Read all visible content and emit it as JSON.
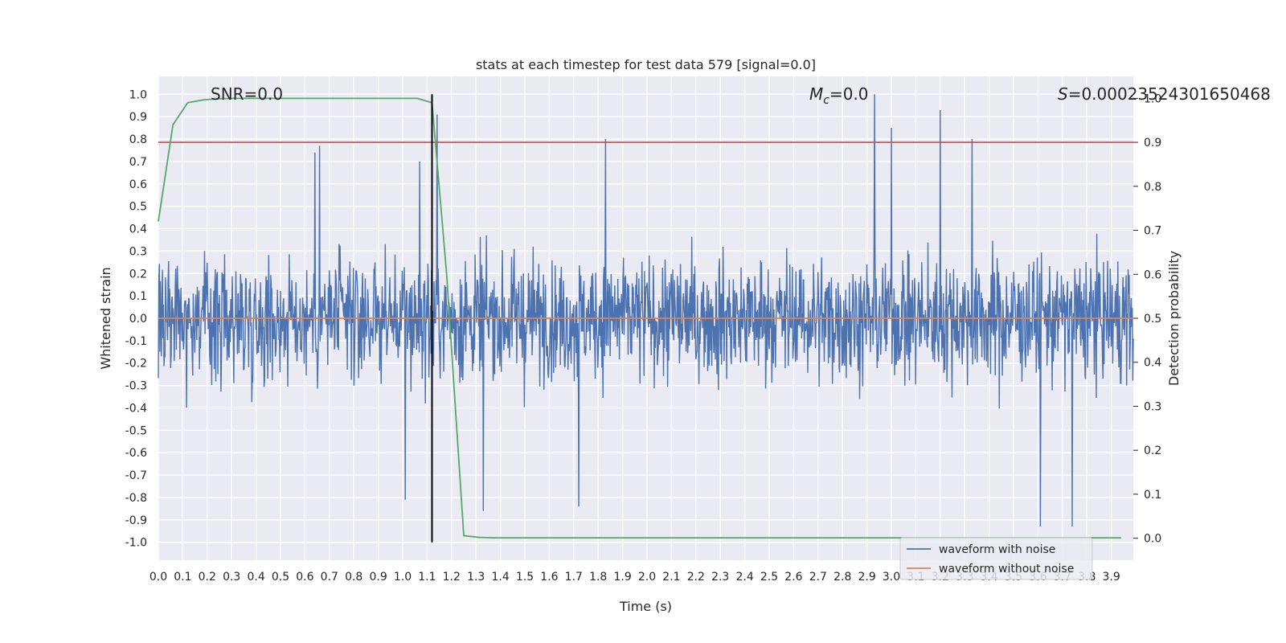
{
  "chart_data": {
    "type": "line",
    "title": "stats at each timestep for test data 579 [signal=0.0]",
    "xlabel": "Time (s)",
    "ylabel": "Whitened strain",
    "y2label": "Detection probability",
    "xlim": [
      0.0,
      3.99
    ],
    "ylim": [
      -1.08,
      1.08
    ],
    "y2lim": [
      -0.05,
      1.05
    ],
    "grid": true,
    "x_ticks": [
      "0.0",
      "0.1",
      "0.2",
      "0.3",
      "0.4",
      "0.5",
      "0.6",
      "0.7",
      "0.8",
      "0.9",
      "1.0",
      "1.1",
      "1.2",
      "1.3",
      "1.4",
      "1.5",
      "1.6",
      "1.7",
      "1.8",
      "1.9",
      "2.0",
      "2.1",
      "2.2",
      "2.3",
      "2.4",
      "2.5",
      "2.6",
      "2.7",
      "2.8",
      "2.9",
      "3.0",
      "3.1",
      "3.2",
      "3.3",
      "3.4",
      "3.5",
      "3.6",
      "3.7",
      "3.8",
      "3.9"
    ],
    "y_ticks": [
      "1.0",
      "0.9",
      "0.8",
      "0.7",
      "0.6",
      "0.5",
      "0.4",
      "0.3",
      "0.2",
      "0.1",
      "0.0",
      "-0.1",
      "-0.2",
      "-0.3",
      "-0.4",
      "-0.5",
      "-0.6",
      "-0.7",
      "-0.8",
      "-0.9",
      "-1.0"
    ],
    "y2_ticks": [
      "1.0",
      "0.9",
      "0.8",
      "0.7",
      "0.6",
      "0.5",
      "0.4",
      "0.3",
      "0.2",
      "0.1",
      "0.0"
    ],
    "annotations": {
      "snr": "SNR=0.0",
      "mc_symbol": "M",
      "mc_sub": "c",
      "mc_value": "=0.0",
      "s_symbol": "S",
      "s_value": "=0.00023524301650468"
    },
    "series": [
      {
        "name": "waveform with noise",
        "color": "#4c72b0",
        "axis": "left",
        "note": "whitened noise, roughly +/-0.4 typical, peaks near 1.0 at t~2.93 s",
        "peaks": [
          {
            "x": 0.64,
            "y": 0.74
          },
          {
            "x": 0.66,
            "y": 0.77
          },
          {
            "x": 1.01,
            "y": -0.81
          },
          {
            "x": 1.07,
            "y": 0.7
          },
          {
            "x": 1.14,
            "y": 0.91
          },
          {
            "x": 1.33,
            "y": -0.86
          },
          {
            "x": 1.72,
            "y": -0.84
          },
          {
            "x": 1.83,
            "y": 0.8
          },
          {
            "x": 2.93,
            "y": 1.0
          },
          {
            "x": 3.0,
            "y": 0.85
          },
          {
            "x": 3.2,
            "y": 0.93
          },
          {
            "x": 3.33,
            "y": 0.8
          },
          {
            "x": 3.61,
            "y": -0.93
          },
          {
            "x": 3.74,
            "y": -0.93
          }
        ]
      },
      {
        "name": "waveform without noise",
        "color": "#dd8452",
        "axis": "left",
        "x": [
          0.0,
          3.99
        ],
        "y": [
          0.0,
          0.0
        ]
      },
      {
        "name": "detection probability",
        "color": "#55a868",
        "axis": "right",
        "x": [
          0.0,
          0.06,
          0.12,
          0.19,
          0.25,
          0.31,
          0.5,
          0.8,
          1.0,
          1.06,
          1.12,
          1.18,
          1.25,
          1.31,
          1.37,
          1.5,
          2.0,
          2.5,
          3.0,
          3.5,
          3.94
        ],
        "y": [
          0.72,
          0.94,
          0.99,
          0.997,
          0.999,
          1.0,
          1.0,
          1.0,
          1.0,
          1.0,
          0.99,
          0.6,
          0.006,
          0.002,
          0.001,
          0.001,
          0.001,
          0.001,
          0.001,
          0.001,
          0.001
        ]
      }
    ],
    "threshold": {
      "axis": "right",
      "value": 0.9,
      "color": "#c44e52"
    },
    "marker": {
      "x": 1.12,
      "color": "#000000"
    },
    "legend": {
      "position": "lower-right",
      "entries": [
        {
          "label": "waveform with noise",
          "color": "#4c72b0"
        },
        {
          "label": "waveform without noise",
          "color": "#dd8452"
        }
      ]
    }
  }
}
